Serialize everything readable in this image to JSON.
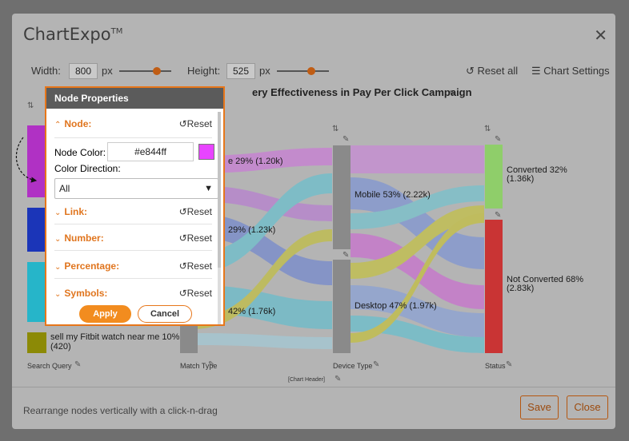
{
  "app": {
    "title": "ChartExpo",
    "trademark": "TM"
  },
  "toolbar": {
    "width_label": "Width:",
    "width_value": "800",
    "width_unit": "px",
    "height_label": "Height:",
    "height_value": "525",
    "height_unit": "px",
    "reset_all": "Reset all",
    "chart_settings": "Chart Settings"
  },
  "chart": {
    "title": "ery Effectiveness in Pay Per Click Campaign",
    "header_label": "[Chart Header]",
    "axis_labels": [
      "Search Query",
      "Match Type",
      "Device Type",
      "Status"
    ],
    "nodes": {
      "match_top": "e 29% (1.20k)",
      "match_mid": "29% (1.23k)",
      "match_bot": "42% (1.76k)",
      "search_last": "sell my Fitbit watch near me 10%",
      "search_last_count": "(420)",
      "mobile": "Mobile 53% (2.22k)",
      "desktop": "Desktop 47% (1.97k)",
      "converted": "Converted 32%",
      "converted_count": "(1.36k)",
      "not_converted": "Not Converted 68%",
      "not_converted_count": "(2.83k)"
    },
    "colors": {
      "purple": "#b031c4",
      "blue": "#1b35b8",
      "cyan": "#26b5c9",
      "olive": "#8c8a06",
      "gray": "#8a8a8a",
      "green": "#8fce6a",
      "red": "#c93434"
    }
  },
  "footer": {
    "hint": "Rearrange nodes vertically with a click-n-drag",
    "save": "Save",
    "close": "Close"
  },
  "panel": {
    "title": "Node Properties",
    "node": "Node:",
    "reset": "Reset",
    "node_color_label": "Node Color:",
    "node_color_value": "#e844ff",
    "color_direction_label": "Color Direction:",
    "color_direction_value": "All",
    "link": "Link:",
    "number": "Number:",
    "percentage": "Percentage:",
    "symbols": "Symbols:",
    "apply": "Apply",
    "cancel": "Cancel"
  }
}
